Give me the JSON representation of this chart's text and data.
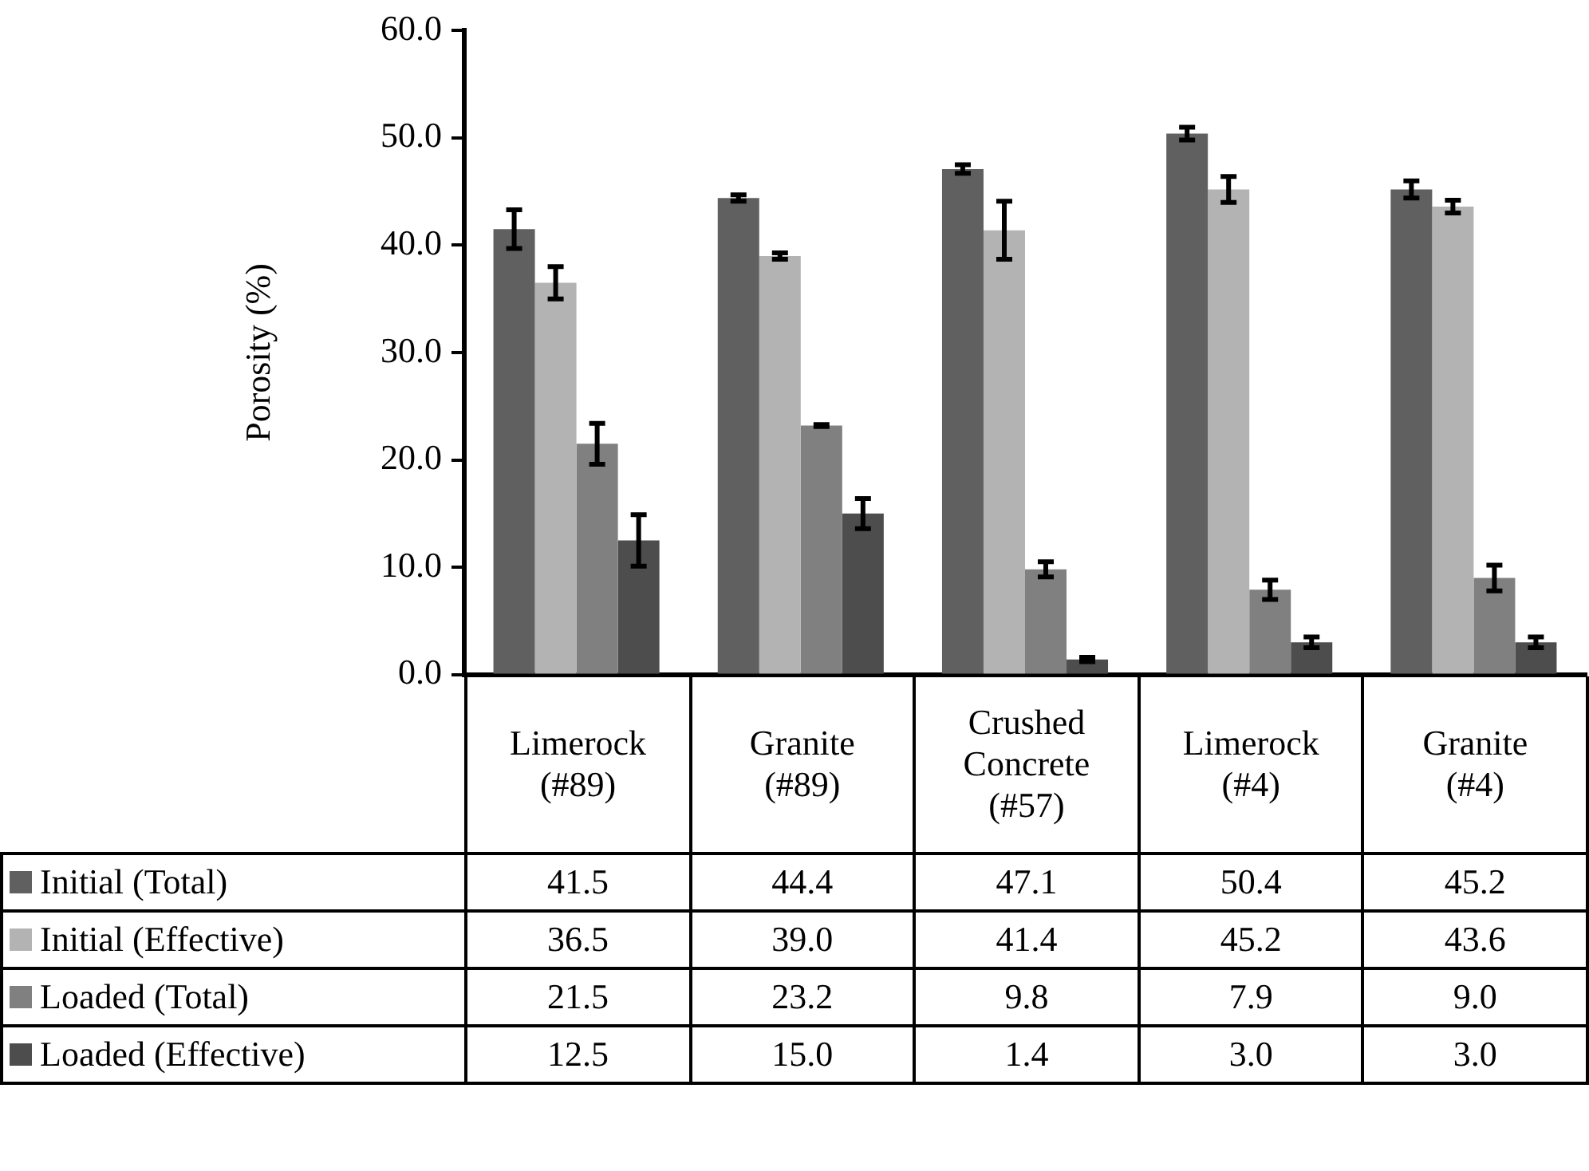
{
  "chart_data": {
    "type": "bar",
    "ylabel": "Porosity (%)",
    "categories": [
      "Limerock (#89)",
      "Granite (#89)",
      "Crushed Concrete (#57)",
      "Limerock (#4)",
      "Granite (#4)"
    ],
    "series": [
      {
        "name": "Initial (Total)",
        "color": "#606060",
        "values": [
          41.5,
          44.4,
          47.1,
          50.4,
          45.2
        ],
        "errors": [
          1.8,
          0.3,
          0.4,
          0.6,
          0.8
        ],
        "value_labels": [
          "41.5",
          "44.4",
          "47.1",
          "50.4",
          "45.2"
        ]
      },
      {
        "name": "Initial (Effective)",
        "color": "#b3b3b3",
        "values": [
          36.5,
          39.0,
          41.4,
          45.2,
          43.6
        ],
        "errors": [
          1.5,
          0.3,
          2.7,
          1.2,
          0.6
        ],
        "value_labels": [
          "36.5",
          "39.0",
          "41.4",
          "45.2",
          "43.6"
        ]
      },
      {
        "name": "Loaded (Total)",
        "color": "#808080",
        "values": [
          21.5,
          23.2,
          9.8,
          7.9,
          9.0
        ],
        "errors": [
          1.9,
          0.1,
          0.7,
          0.9,
          1.2
        ],
        "value_labels": [
          "21.5",
          "23.2",
          "9.8",
          "7.9",
          "9.0"
        ]
      },
      {
        "name": "Loaded (Effective)",
        "color": "#4d4d4d",
        "values": [
          12.5,
          15.0,
          1.4,
          3.0,
          3.0
        ],
        "errors": [
          2.4,
          1.4,
          0.2,
          0.5,
          0.5
        ],
        "value_labels": [
          "12.5",
          "15.0",
          "1.4",
          "3.0",
          "3.0"
        ]
      }
    ],
    "ylim": [
      0,
      60
    ],
    "yticks": [
      {
        "value": 0,
        "label": "0.0"
      },
      {
        "value": 10,
        "label": "10.0"
      },
      {
        "value": 20,
        "label": "20.0"
      },
      {
        "value": 30,
        "label": "30.0"
      },
      {
        "value": 40,
        "label": "40.0"
      },
      {
        "value": 50,
        "label": "50.0"
      },
      {
        "value": 60,
        "label": "60.0"
      }
    ],
    "grid": false,
    "legend": "bottom"
  }
}
